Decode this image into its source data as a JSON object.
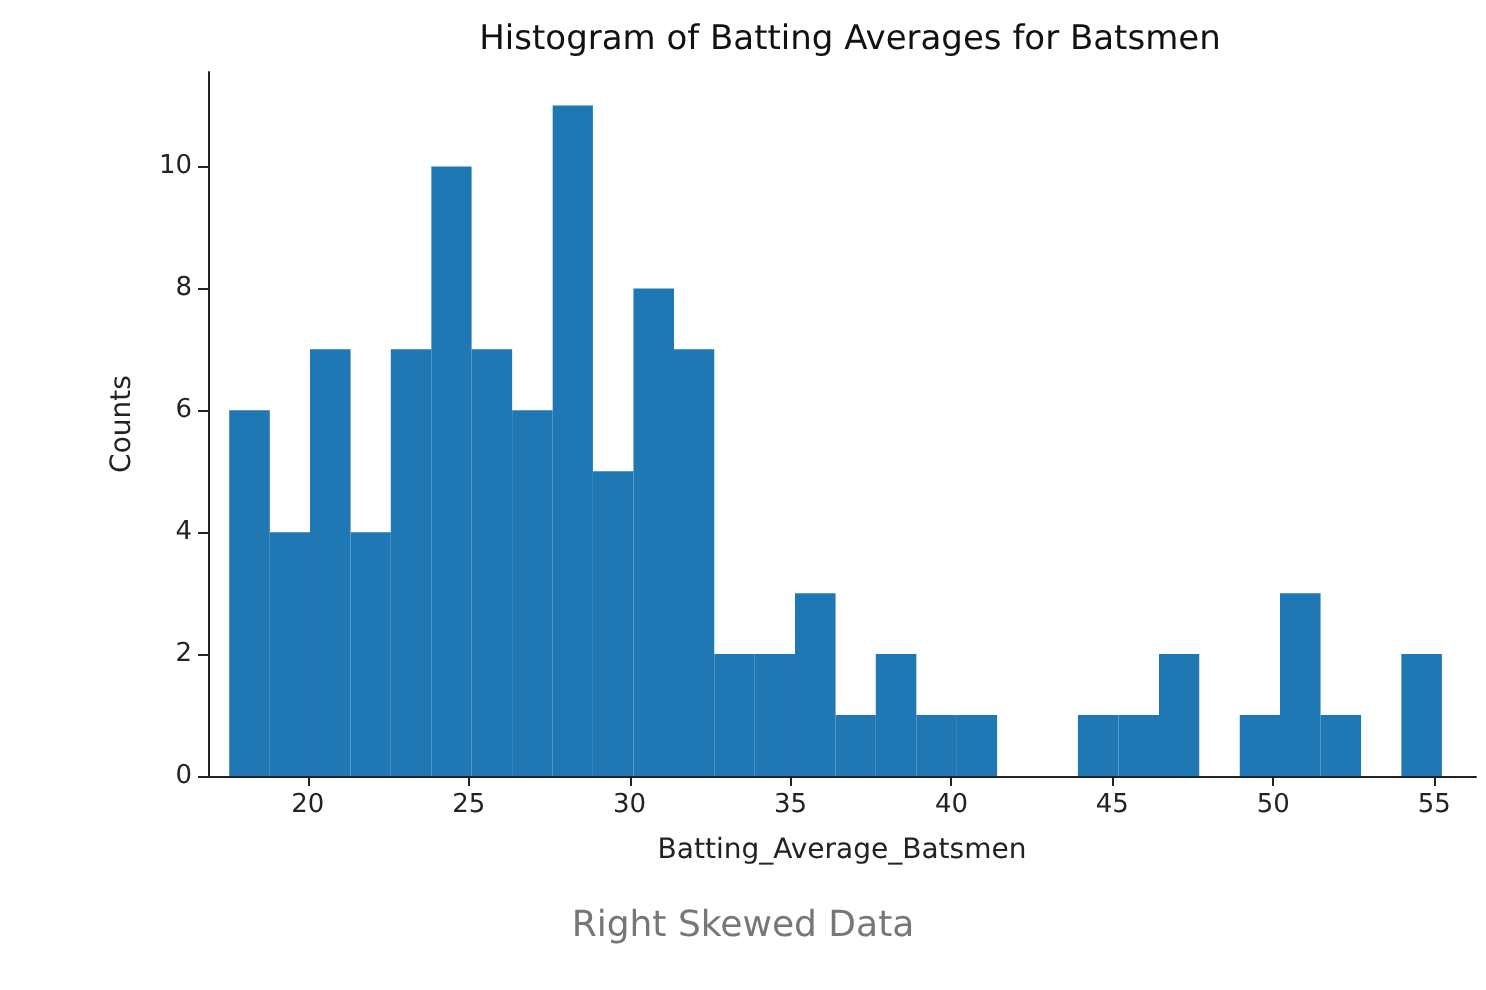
{
  "chart_data": {
    "type": "histogram",
    "title": "Histogram of Batting Averages for Batsmen",
    "xlabel": "Batting_Average_Batsmen",
    "ylabel": "Counts",
    "annotations": [
      "Right Skewed Data"
    ],
    "bins": [
      17.56,
      18.82,
      20.07,
      21.33,
      22.58,
      23.84,
      25.09,
      26.35,
      27.61,
      28.86,
      30.12,
      31.38,
      32.63,
      33.89,
      35.14,
      36.4,
      37.65,
      38.91,
      40.17,
      41.42,
      42.68,
      43.93,
      45.19,
      46.45,
      47.7,
      48.96,
      50.21,
      51.47,
      52.73,
      53.98,
      55.24
    ],
    "values": [
      6,
      4,
      7,
      4,
      7,
      10,
      7,
      6,
      11,
      5,
      8,
      7,
      2,
      2,
      3,
      1,
      2,
      1,
      1,
      0,
      0,
      1,
      1,
      2,
      0,
      1,
      3,
      1,
      0,
      2
    ],
    "color": "#1f77b4",
    "xlim": [
      16.9,
      56.3
    ],
    "xticks": [
      20,
      25,
      30,
      35,
      40,
      45,
      50,
      55
    ],
    "ylim": [
      0,
      11.55
    ],
    "yticks": [
      0,
      2,
      4,
      6,
      8,
      10
    ],
    "grid": false,
    "legend": false
  }
}
